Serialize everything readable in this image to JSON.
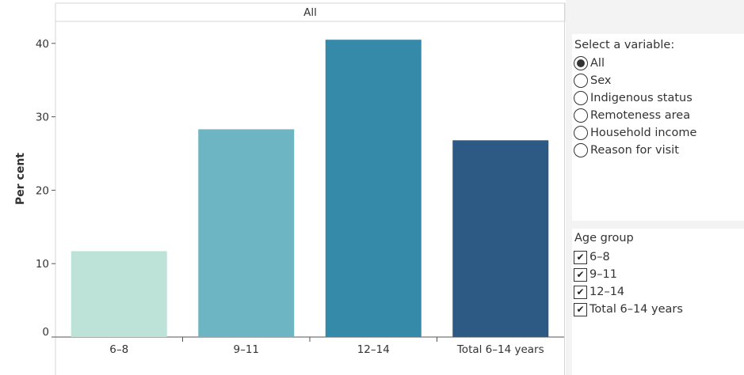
{
  "chart_data": {
    "type": "bar",
    "title": "All",
    "xlabel": "",
    "ylabel": "Per cent",
    "ylim": [
      0,
      43
    ],
    "yticks": [
      0,
      10,
      20,
      30,
      40
    ],
    "categories": [
      "6–8",
      "9–11",
      "12–14",
      "Total 6–14 years"
    ],
    "values": [
      11.7,
      28.3,
      40.5,
      26.8
    ],
    "colors": [
      "#bde3d8",
      "#6db5c3",
      "#348aa8",
      "#2c5a84"
    ],
    "grid": false,
    "legend": "none"
  },
  "filters": {
    "variable": {
      "title": "Select a variable:",
      "selected": "All",
      "options": [
        "All",
        "Sex",
        "Indigenous status",
        "Remoteness area",
        "Household income",
        "Reason for visit"
      ]
    },
    "age_group": {
      "title": "Age group",
      "check_glyph": "✔",
      "options": [
        "6–8",
        "9–11",
        "12–14",
        "Total 6–14 years"
      ],
      "checked": [
        true,
        true,
        true,
        true
      ]
    }
  }
}
